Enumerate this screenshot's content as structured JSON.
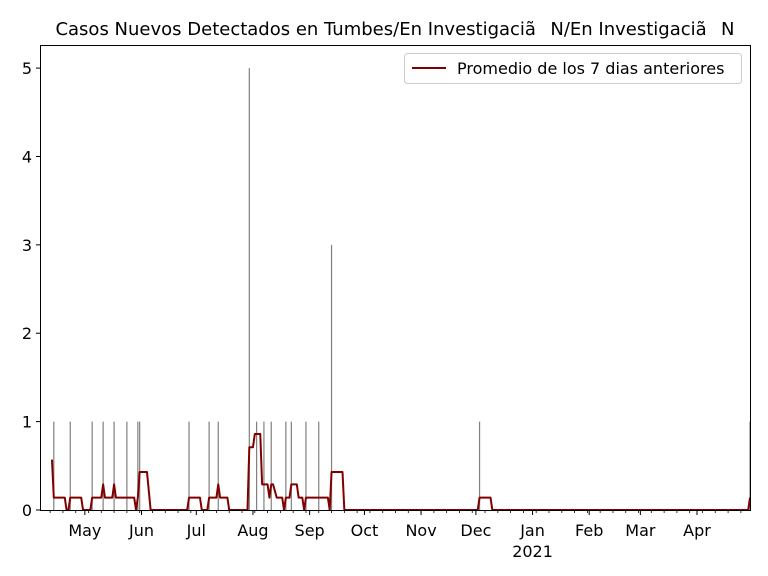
{
  "chart_data": {
    "type": "bar+line",
    "title": "Casos Nuevos Detectados en Tumbes/En InvestigaciãN/En InvestigaciãN",
    "xlabel": "",
    "ylabel": "",
    "x_range": [
      "2020-04-07",
      "2021-04-30"
    ],
    "ylim": [
      0,
      5.25
    ],
    "y_ticks": [
      0,
      1,
      2,
      3,
      4,
      5
    ],
    "x_ticks": [
      {
        "date": "2020-05-01",
        "label": "May",
        "sub": ""
      },
      {
        "date": "2020-06-01",
        "label": "Jun",
        "sub": ""
      },
      {
        "date": "2020-07-01",
        "label": "Jul",
        "sub": ""
      },
      {
        "date": "2020-08-01",
        "label": "Aug",
        "sub": ""
      },
      {
        "date": "2020-09-01",
        "label": "Sep",
        "sub": ""
      },
      {
        "date": "2020-10-01",
        "label": "Oct",
        "sub": ""
      },
      {
        "date": "2020-11-01",
        "label": "Nov",
        "sub": ""
      },
      {
        "date": "2020-12-01",
        "label": "Dec",
        "sub": ""
      },
      {
        "date": "2021-01-01",
        "label": "Jan",
        "sub": "2021"
      },
      {
        "date": "2021-02-01",
        "label": "Feb",
        "sub": ""
      },
      {
        "date": "2021-03-01",
        "label": "Mar",
        "sub": ""
      },
      {
        "date": "2021-04-01",
        "label": "Apr",
        "sub": ""
      }
    ],
    "bars": [
      {
        "date": "2020-04-14",
        "value": 1
      },
      {
        "date": "2020-04-23",
        "value": 1
      },
      {
        "date": "2020-05-05",
        "value": 1
      },
      {
        "date": "2020-05-11",
        "value": 1
      },
      {
        "date": "2020-05-17",
        "value": 1
      },
      {
        "date": "2020-05-24",
        "value": 1
      },
      {
        "date": "2020-05-30",
        "value": 1
      },
      {
        "date": "2020-05-31",
        "value": 1
      },
      {
        "date": "2020-06-27",
        "value": 1
      },
      {
        "date": "2020-07-08",
        "value": 1
      },
      {
        "date": "2020-07-13",
        "value": 1
      },
      {
        "date": "2020-07-30",
        "value": 5
      },
      {
        "date": "2020-08-03",
        "value": 1
      },
      {
        "date": "2020-08-07",
        "value": 1
      },
      {
        "date": "2020-08-11",
        "value": 1
      },
      {
        "date": "2020-08-19",
        "value": 1
      },
      {
        "date": "2020-08-22",
        "value": 1
      },
      {
        "date": "2020-08-30",
        "value": 1
      },
      {
        "date": "2020-09-06",
        "value": 1
      },
      {
        "date": "2020-09-13",
        "value": 3
      },
      {
        "date": "2020-12-03",
        "value": 1
      },
      {
        "date": "2021-04-30",
        "value": 1
      }
    ],
    "series": [
      {
        "name": "Promedio de los 7 dias anteriores",
        "color": "#800000",
        "points": [
          [
            "2020-04-13",
            0.57
          ],
          [
            "2020-04-14",
            0.14
          ],
          [
            "2020-04-20",
            0.14
          ],
          [
            "2020-04-21",
            0
          ],
          [
            "2020-04-22",
            0
          ],
          [
            "2020-04-23",
            0.14
          ],
          [
            "2020-04-29",
            0.14
          ],
          [
            "2020-04-30",
            0
          ],
          [
            "2020-05-04",
            0
          ],
          [
            "2020-05-05",
            0.14
          ],
          [
            "2020-05-10",
            0.14
          ],
          [
            "2020-05-11",
            0.29
          ],
          [
            "2020-05-12",
            0.14
          ],
          [
            "2020-05-16",
            0.14
          ],
          [
            "2020-05-17",
            0.29
          ],
          [
            "2020-05-18",
            0.14
          ],
          [
            "2020-05-28",
            0.14
          ],
          [
            "2020-05-29",
            0
          ],
          [
            "2020-05-30",
            0.14
          ],
          [
            "2020-05-31",
            0.43
          ],
          [
            "2020-06-04",
            0.43
          ],
          [
            "2020-06-06",
            0
          ],
          [
            "2020-06-26",
            0
          ],
          [
            "2020-06-27",
            0.14
          ],
          [
            "2020-07-03",
            0.14
          ],
          [
            "2020-07-04",
            0
          ],
          [
            "2020-07-07",
            0
          ],
          [
            "2020-07-08",
            0.14
          ],
          [
            "2020-07-12",
            0.14
          ],
          [
            "2020-07-13",
            0.29
          ],
          [
            "2020-07-14",
            0.14
          ],
          [
            "2020-07-18",
            0.14
          ],
          [
            "2020-07-19",
            0
          ],
          [
            "2020-07-29",
            0
          ],
          [
            "2020-07-30",
            0.71
          ],
          [
            "2020-08-01",
            0.71
          ],
          [
            "2020-08-02",
            0.86
          ],
          [
            "2020-08-05",
            0.86
          ],
          [
            "2020-08-06",
            0.29
          ],
          [
            "2020-08-09",
            0.29
          ],
          [
            "2020-08-10",
            0.14
          ],
          [
            "2020-08-11",
            0.29
          ],
          [
            "2020-08-12",
            0.29
          ],
          [
            "2020-08-14",
            0.14
          ],
          [
            "2020-08-17",
            0.14
          ],
          [
            "2020-08-18",
            0
          ],
          [
            "2020-08-19",
            0.14
          ],
          [
            "2020-08-21",
            0.14
          ],
          [
            "2020-08-22",
            0.29
          ],
          [
            "2020-08-25",
            0.29
          ],
          [
            "2020-08-26",
            0.14
          ],
          [
            "2020-08-28",
            0.14
          ],
          [
            "2020-08-29",
            0
          ],
          [
            "2020-08-30",
            0.14
          ],
          [
            "2020-09-11",
            0.14
          ],
          [
            "2020-09-12",
            0
          ],
          [
            "2020-09-13",
            0.43
          ],
          [
            "2020-09-19",
            0.43
          ],
          [
            "2020-09-20",
            0
          ],
          [
            "2020-12-02",
            0
          ],
          [
            "2020-12-03",
            0.14
          ],
          [
            "2020-12-09",
            0.14
          ],
          [
            "2020-12-10",
            0
          ],
          [
            "2021-04-29",
            0
          ],
          [
            "2021-04-30",
            0.14
          ]
        ]
      }
    ],
    "legend": {
      "position": "top-right"
    },
    "grid": false
  }
}
